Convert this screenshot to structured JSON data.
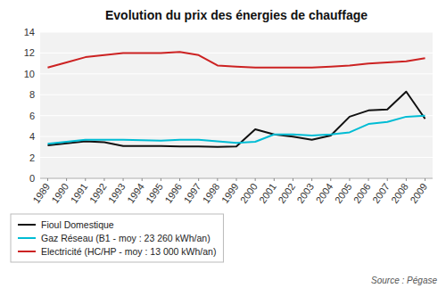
{
  "chart_data": {
    "type": "line",
    "title": "Evolution du prix des énergies de chauffage",
    "x": [
      1989,
      1990,
      1991,
      1992,
      1993,
      1994,
      1995,
      1996,
      1997,
      1998,
      1999,
      2000,
      2001,
      2002,
      2003,
      2004,
      2005,
      2006,
      2007,
      2008,
      2009
    ],
    "series": [
      {
        "name": "Fioul Domestique",
        "color": "#111111",
        "values": [
          3.15,
          3.35,
          3.55,
          3.45,
          3.1,
          3.1,
          3.1,
          3.05,
          3.05,
          3.0,
          3.05,
          4.7,
          4.2,
          4.0,
          3.7,
          4.1,
          5.9,
          6.5,
          6.6,
          8.3,
          5.7
        ]
      },
      {
        "name": "Gaz Réseau (B1 - moy : 23 260 kWh/an)",
        "color": "#00bcd4",
        "values": [
          3.3,
          3.5,
          3.7,
          3.7,
          3.7,
          3.65,
          3.6,
          3.7,
          3.7,
          3.55,
          3.4,
          3.5,
          4.2,
          4.2,
          4.1,
          4.2,
          4.4,
          5.2,
          5.4,
          5.9,
          6.0
        ]
      },
      {
        "name": "Electricité (HC/HP - moy : 13 000 kWh/an)",
        "color": "#cc2222",
        "values": [
          10.6,
          11.1,
          11.6,
          11.8,
          12.0,
          12.0,
          12.0,
          12.1,
          11.8,
          10.8,
          10.7,
          10.6,
          10.6,
          10.6,
          10.6,
          10.7,
          10.8,
          11.0,
          11.1,
          11.2,
          11.5
        ]
      }
    ],
    "xlim": [
      1988.6,
      2009.4
    ],
    "xticks": [
      1989,
      1990,
      1991,
      1992,
      1993,
      1994,
      1995,
      1996,
      1997,
      1998,
      1999,
      2000,
      2001,
      2002,
      2003,
      2004,
      2005,
      2006,
      2007,
      2008,
      2009
    ],
    "ylim": [
      0,
      14
    ],
    "yticks": [
      0,
      2,
      4,
      6,
      8,
      10,
      12,
      14
    ],
    "grid": true,
    "legend": "bottom",
    "source": "Source : Pégase"
  }
}
